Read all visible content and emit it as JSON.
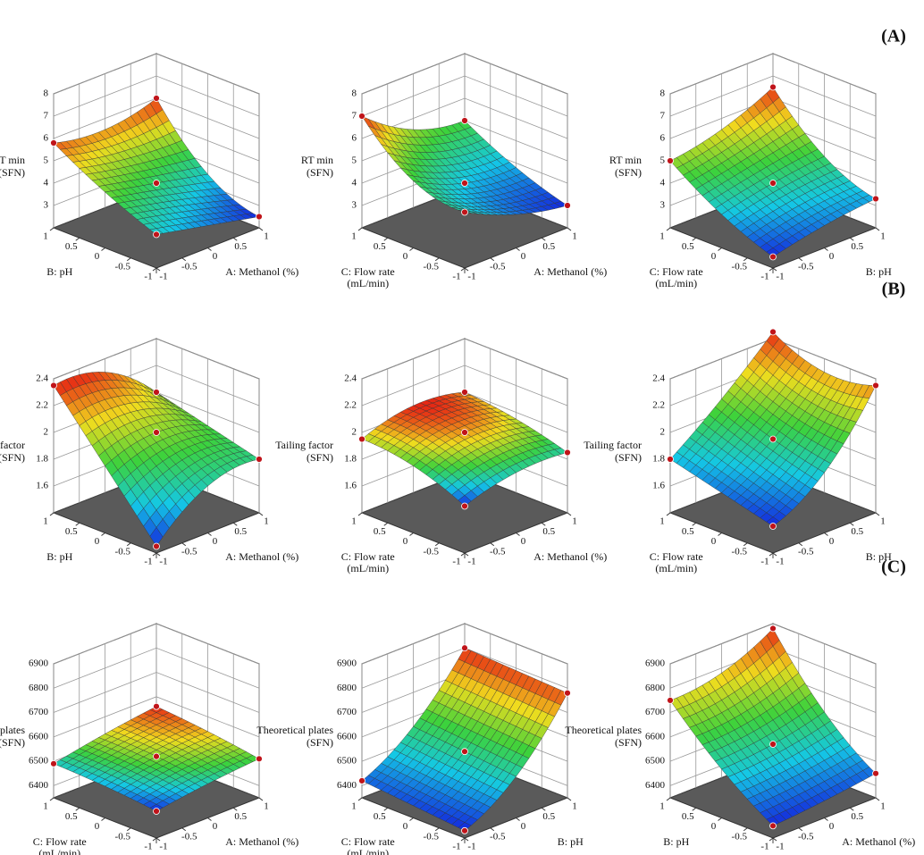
{
  "panel_labels": [
    "(A)",
    "(B)",
    "(C)"
  ],
  "chart_data": [
    {
      "type": "surface3d",
      "xlabel": [
        "A: Methanol (%)"
      ],
      "ylabel": [
        "B: pH"
      ],
      "zlabel": [
        "RT min",
        "(SFN)"
      ],
      "xticks": [
        -1,
        -0.5,
        0,
        0.5,
        1
      ],
      "yticks": [
        -1,
        -0.5,
        0,
        0.5,
        1
      ],
      "zticks": [
        3,
        4,
        5,
        6,
        7,
        8
      ],
      "zlim": [
        2,
        8
      ],
      "x": [
        -1,
        0,
        1
      ],
      "y": [
        -1,
        0,
        1
      ],
      "z": [
        [
          3.5,
          3.0,
          2.5
        ],
        [
          4.5,
          4.0,
          3.5
        ],
        [
          5.8,
          5.5,
          6.0
        ]
      ]
    },
    {
      "type": "surface3d",
      "xlabel": [
        "A: Methanol (%)"
      ],
      "ylabel": [
        "C: Flow rate",
        "(mL/min)"
      ],
      "zlabel": [
        "RT min",
        "(SFN)"
      ],
      "xticks": [
        -1,
        -0.5,
        0,
        0.5,
        1
      ],
      "yticks": [
        -1,
        -0.5,
        0,
        0.5,
        1
      ],
      "zticks": [
        3,
        4,
        5,
        6,
        7,
        8
      ],
      "zlim": [
        2,
        8
      ],
      "x": [
        -1,
        0,
        1
      ],
      "y": [
        -1,
        0,
        1
      ],
      "z": [
        [
          4.5,
          3.5,
          3.0
        ],
        [
          5.0,
          4.0,
          3.8
        ],
        [
          7.0,
          5.5,
          5.0
        ]
      ]
    },
    {
      "type": "surface3d",
      "xlabel": [
        "B: pH"
      ],
      "ylabel": [
        "C: Flow rate",
        "(mL/min)"
      ],
      "zlabel": [
        "RT min",
        "(SFN)"
      ],
      "xticks": [
        -1,
        -0.5,
        0,
        0.5,
        1
      ],
      "yticks": [
        -1,
        -0.5,
        0,
        0.5,
        1
      ],
      "zticks": [
        3,
        4,
        5,
        6,
        7,
        8
      ],
      "zlim": [
        2,
        8
      ],
      "x": [
        -1,
        0,
        1
      ],
      "y": [
        -1,
        0,
        1
      ],
      "z": [
        [
          2.5,
          3.0,
          3.3
        ],
        [
          3.5,
          4.0,
          4.3
        ],
        [
          5.0,
          5.5,
          6.5
        ]
      ]
    },
    {
      "type": "surface3d",
      "xlabel": [
        "A: Methanol (%)"
      ],
      "ylabel": [
        "B: pH"
      ],
      "zlabel": [
        "Tailing factor",
        "(SFN)"
      ],
      "xticks": [
        -1,
        -0.5,
        0,
        0.5,
        1
      ],
      "yticks": [
        -1,
        -0.5,
        0,
        0.5,
        1
      ],
      "zticks": [
        1.6,
        1.8,
        2,
        2.2,
        2.4
      ],
      "zlim": [
        1.4,
        2.4
      ],
      "x": [
        -1,
        0,
        1
      ],
      "y": [
        -1,
        0,
        1
      ],
      "z": [
        [
          1.45,
          1.75,
          1.8
        ],
        [
          1.9,
          2.0,
          1.9
        ],
        [
          2.35,
          2.3,
          2.0
        ]
      ]
    },
    {
      "type": "surface3d",
      "xlabel": [
        "A: Methanol (%)"
      ],
      "ylabel": [
        "C: Flow rate",
        "(mL/min)"
      ],
      "zlabel": [
        "Tailing factor",
        "(SFN)"
      ],
      "xticks": [
        -1,
        -0.5,
        0,
        0.5,
        1
      ],
      "yticks": [
        -1,
        -0.5,
        0,
        0.5,
        1
      ],
      "zticks": [
        1.6,
        1.8,
        2,
        2.2,
        2.4
      ],
      "zlim": [
        1.4,
        2.4
      ],
      "x": [
        -1,
        0,
        1
      ],
      "y": [
        -1,
        0,
        1
      ],
      "z": [
        [
          1.75,
          1.85,
          1.85
        ],
        [
          1.9,
          2.0,
          1.95
        ],
        [
          1.95,
          2.05,
          2.0
        ]
      ]
    },
    {
      "type": "surface3d",
      "xlabel": [
        "B: pH"
      ],
      "ylabel": [
        "C: Flow rate",
        "(mL/min)"
      ],
      "zlabel": [
        "Tailing factor",
        "(SFN)"
      ],
      "xticks": [
        -1,
        -0.5,
        0,
        0.5,
        1
      ],
      "yticks": [
        -1,
        -0.5,
        0,
        0.5,
        1
      ],
      "zticks": [
        1.6,
        1.8,
        2,
        2.2,
        2.4
      ],
      "zlim": [
        1.4,
        2.4
      ],
      "x": [
        -1,
        0,
        1
      ],
      "y": [
        -1,
        0,
        1
      ],
      "z": [
        [
          1.6,
          1.85,
          2.35
        ],
        [
          1.7,
          1.95,
          2.3
        ],
        [
          1.8,
          2.1,
          2.45
        ]
      ]
    },
    {
      "type": "surface3d",
      "xlabel": [
        "A: Methanol (%)"
      ],
      "ylabel": [
        "C: Flow rate",
        "(mL/min)"
      ],
      "zlabel": [
        "Theoretical plates",
        "(SFN)"
      ],
      "xticks": [
        -1,
        -0.5,
        0,
        0.5,
        1
      ],
      "yticks": [
        -1,
        -0.5,
        0,
        0.5,
        1
      ],
      "zticks": [
        6400,
        6500,
        6600,
        6700,
        6800,
        6900
      ],
      "zlim": [
        6350,
        6900
      ],
      "x": [
        -1,
        0,
        1
      ],
      "y": [
        -1,
        0,
        1
      ],
      "z": [
        [
          6460,
          6490,
          6510
        ],
        [
          6480,
          6520,
          6540
        ],
        [
          6490,
          6530,
          6560
        ]
      ]
    },
    {
      "type": "surface3d",
      "xlabel": [
        "B: pH"
      ],
      "ylabel": [
        "C: Flow rate",
        "(mL/min)"
      ],
      "zlabel": [
        "Theoretical plates",
        "(SFN)"
      ],
      "xticks": [
        -1,
        -0.5,
        0,
        0.5,
        1
      ],
      "yticks": [
        -1,
        -0.5,
        0,
        0.5,
        1
      ],
      "zticks": [
        6400,
        6500,
        6600,
        6700,
        6800,
        6900
      ],
      "zlim": [
        6350,
        6900
      ],
      "x": [
        -1,
        0,
        1
      ],
      "y": [
        -1,
        0,
        1
      ],
      "z": [
        [
          6380,
          6520,
          6780
        ],
        [
          6400,
          6540,
          6790
        ],
        [
          6420,
          6560,
          6800
        ]
      ]
    },
    {
      "type": "surface3d",
      "xlabel": [
        "A: Methanol (%)"
      ],
      "ylabel": [
        "B: pH"
      ],
      "zlabel": [
        "Theoretical plates",
        "(SFN)"
      ],
      "xticks": [
        -1,
        -0.5,
        0,
        0.5,
        1
      ],
      "yticks": [
        -1,
        -0.5,
        0,
        0.5,
        1
      ],
      "zticks": [
        6400,
        6500,
        6600,
        6700,
        6800,
        6900
      ],
      "zlim": [
        6350,
        6900
      ],
      "x": [
        -1,
        0,
        1
      ],
      "y": [
        -1,
        0,
        1
      ],
      "z": [
        [
          6400,
          6420,
          6450
        ],
        [
          6550,
          6570,
          6620
        ],
        [
          6750,
          6780,
          6880
        ]
      ]
    }
  ]
}
